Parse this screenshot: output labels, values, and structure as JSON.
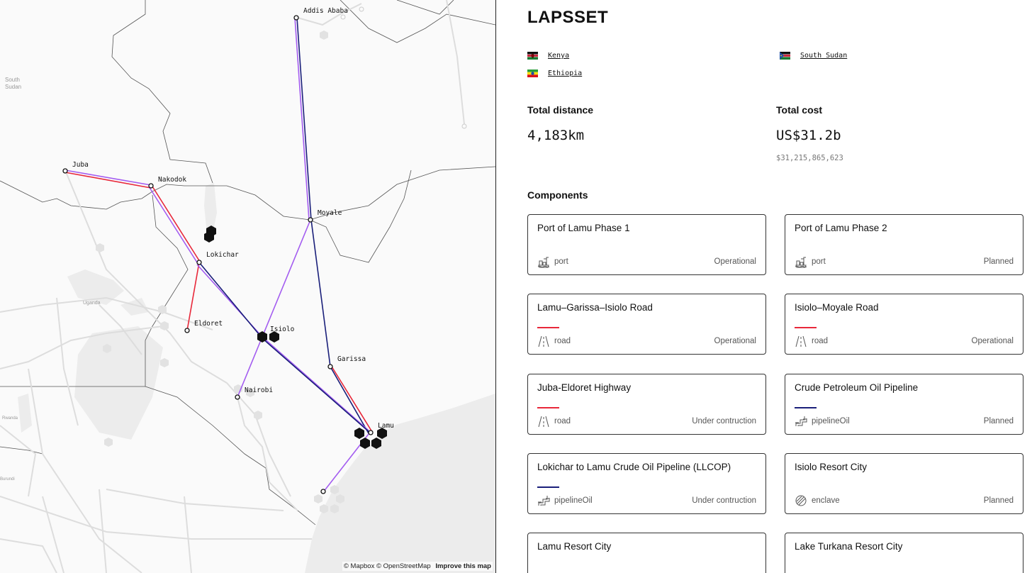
{
  "map": {
    "region_labels": {
      "south_sudan": "South\nSudan",
      "uganda": "Uganda",
      "rwanda": "Rwanda",
      "burundi": "Burundi"
    },
    "places": {
      "addis": "Addis Ababa",
      "juba": "Juba",
      "nakodok": "Nakodok",
      "moyale": "Moyale",
      "lokichar": "Lokichar",
      "eldoret": "Eldoret",
      "isiolo": "Isiolo",
      "garissa": "Garissa",
      "nairobi": "Nairobi",
      "lamu": "Lamu"
    },
    "colors": {
      "road": "#e8283a",
      "pipeline": "#1a1f7a",
      "railway": "#a35cf0"
    },
    "attribution": {
      "mapbox": "© Mapbox",
      "osm": "© OpenStreetMap",
      "improve": "Improve this map"
    }
  },
  "panel": {
    "title": "LAPSSET",
    "countries": [
      {
        "name": "Kenya",
        "flag": "kenya-flag"
      },
      {
        "name": "South Sudan",
        "flag": "south-sudan-flag"
      },
      {
        "name": "Ethiopia",
        "flag": "ethiopia-flag"
      }
    ],
    "total_distance_label": "Total distance",
    "total_distance_value": "4,183km",
    "total_cost_label": "Total cost",
    "total_cost_value": "US$31.2b",
    "total_cost_exact": "$31,215,865,623",
    "components_label": "Components",
    "components": [
      {
        "name": "Port of Lamu Phase 1",
        "type": "port",
        "icon": "port-icon",
        "status": "Operational",
        "color": ""
      },
      {
        "name": "Port of Lamu Phase 2",
        "type": "port",
        "icon": "port-icon",
        "status": "Planned",
        "color": ""
      },
      {
        "name": "Lamu–Garissa–Isiolo Road",
        "type": "road",
        "icon": "road-icon",
        "status": "Operational",
        "color": "#e8283a"
      },
      {
        "name": "Isiolo–Moyale Road",
        "type": "road",
        "icon": "road-icon",
        "status": "Operational",
        "color": "#e8283a"
      },
      {
        "name": "Juba-Eldoret Highway",
        "type": "road",
        "icon": "road-icon",
        "status": "Under contruction",
        "color": "#e8283a"
      },
      {
        "name": "Crude Petroleum Oil Pipeline",
        "type": "pipelineOil",
        "icon": "pipeline-icon",
        "status": "Planned",
        "color": "#1a1f7a"
      },
      {
        "name": "Lokichar to Lamu Crude Oil Pipeline (LLCOP)",
        "type": "pipelineOil",
        "icon": "pipeline-icon",
        "status": "Under contruction",
        "color": "#1a1f7a"
      },
      {
        "name": "Isiolo Resort City",
        "type": "enclave",
        "icon": "enclave-icon",
        "status": "Planned",
        "color": ""
      },
      {
        "name": "Lamu Resort City",
        "type": "",
        "icon": "",
        "status": "",
        "color": ""
      },
      {
        "name": "Lake Turkana Resort City",
        "type": "",
        "icon": "",
        "status": "",
        "color": ""
      }
    ]
  }
}
